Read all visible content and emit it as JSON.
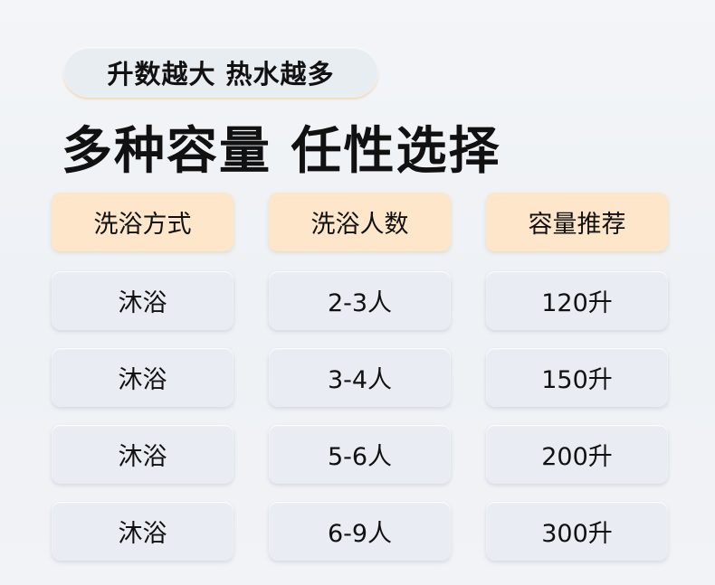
{
  "badge": "升数越大 热水越多",
  "title": "多种容量 任性选择",
  "colors": {
    "header_bg": "#fde6c9",
    "cell_bg": "#e9edf3"
  },
  "table": {
    "headers": [
      "洗浴方式",
      "洗浴人数",
      "容量推荐"
    ],
    "rows": [
      [
        "沐浴",
        "2-3人",
        "120升"
      ],
      [
        "沐浴",
        "3-4人",
        "150升"
      ],
      [
        "沐浴",
        "5-6人",
        "200升"
      ],
      [
        "沐浴",
        "6-9人",
        "300升"
      ]
    ]
  }
}
